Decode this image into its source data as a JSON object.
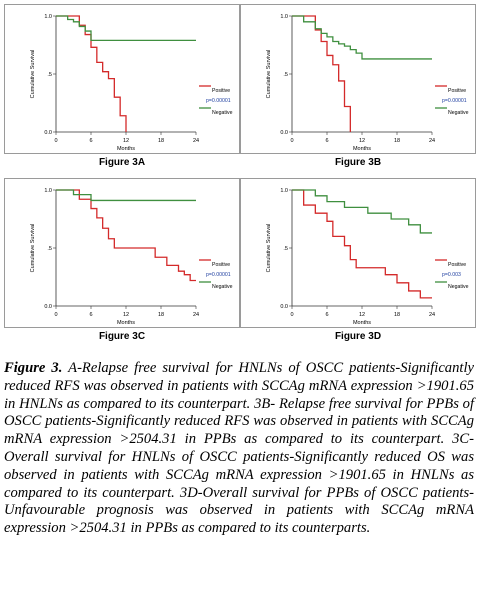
{
  "chart_data": [
    {
      "type": "line",
      "panel_label": "Figure 3A",
      "ylabel": "Cumulative Survival",
      "xlabel": "Months",
      "xlim": [
        0,
        24
      ],
      "ylim": [
        0,
        1
      ],
      "xticks": [
        "0",
        "6",
        "12",
        "18",
        "24"
      ],
      "yticks": [
        "0.0",
        ".5",
        "1.0"
      ],
      "p_label": "p=0.00001",
      "series": [
        {
          "name": "Positive",
          "color": "#d42a2a",
          "x": [
            0,
            4,
            5,
            6,
            7,
            8,
            9,
            10,
            11,
            12
          ],
          "y": [
            1.0,
            0.92,
            0.84,
            0.73,
            0.6,
            0.52,
            0.46,
            0.3,
            0.14,
            0.0
          ]
        },
        {
          "name": "Negative",
          "color": "#3f8f3f",
          "x": [
            0,
            2,
            3,
            4,
            5,
            6,
            24
          ],
          "y": [
            1.0,
            0.97,
            0.95,
            0.91,
            0.87,
            0.79,
            0.79
          ]
        }
      ]
    },
    {
      "type": "line",
      "panel_label": "Figure 3B",
      "ylabel": "Cumulative Survival",
      "xlabel": "Months",
      "xlim": [
        0,
        24
      ],
      "ylim": [
        0,
        1
      ],
      "xticks": [
        "0",
        "6",
        "12",
        "18",
        "24"
      ],
      "yticks": [
        "0.0",
        ".5",
        "1.0"
      ],
      "p_label": "p=0.00001",
      "series": [
        {
          "name": "Positive",
          "color": "#d42a2a",
          "x": [
            0,
            4,
            5,
            6,
            7,
            8,
            9,
            10
          ],
          "y": [
            1.0,
            0.88,
            0.78,
            0.66,
            0.58,
            0.44,
            0.22,
            0.0
          ]
        },
        {
          "name": "Negative",
          "color": "#3f8f3f",
          "x": [
            0,
            2,
            4,
            5,
            6,
            7,
            8,
            9,
            10,
            11,
            12,
            24
          ],
          "y": [
            1.0,
            0.95,
            0.89,
            0.85,
            0.82,
            0.78,
            0.76,
            0.74,
            0.71,
            0.68,
            0.63,
            0.63
          ]
        }
      ]
    },
    {
      "type": "line",
      "panel_label": "Figure 3C",
      "ylabel": "Cumulative Survival",
      "xlabel": "Months",
      "xlim": [
        0,
        24
      ],
      "ylim": [
        0,
        1
      ],
      "xticks": [
        "0",
        "6",
        "12",
        "18",
        "24"
      ],
      "yticks": [
        "0.0",
        ".5",
        "1.0"
      ],
      "p_label": "p=0.00001",
      "series": [
        {
          "name": "Positive",
          "color": "#d42a2a",
          "x": [
            0,
            4,
            6,
            7,
            8,
            9,
            10,
            15,
            17,
            19,
            21,
            22,
            23,
            24
          ],
          "y": [
            1.0,
            0.92,
            0.84,
            0.76,
            0.67,
            0.58,
            0.5,
            0.5,
            0.42,
            0.35,
            0.3,
            0.27,
            0.22,
            0.22
          ]
        },
        {
          "name": "Negative",
          "color": "#3f8f3f",
          "x": [
            0,
            3,
            6,
            24
          ],
          "y": [
            1.0,
            0.96,
            0.91,
            0.91
          ]
        }
      ]
    },
    {
      "type": "line",
      "panel_label": "Figure 3D",
      "ylabel": "Cumulative Survival",
      "xlabel": "Months",
      "xlim": [
        0,
        24
      ],
      "ylim": [
        0,
        1
      ],
      "xticks": [
        "0",
        "6",
        "12",
        "18",
        "24"
      ],
      "yticks": [
        "0.0",
        ".5",
        "1.0"
      ],
      "p_label": "p=0.003",
      "series": [
        {
          "name": "Positive",
          "color": "#d42a2a",
          "x": [
            0,
            2,
            4,
            6,
            7,
            9,
            10,
            11,
            16,
            18,
            20,
            22,
            24
          ],
          "y": [
            1.0,
            0.87,
            0.8,
            0.73,
            0.6,
            0.52,
            0.4,
            0.33,
            0.27,
            0.2,
            0.13,
            0.07,
            0.07
          ]
        },
        {
          "name": "Negative",
          "color": "#3f8f3f",
          "x": [
            0,
            4,
            6,
            9,
            13,
            17,
            20,
            22,
            24
          ],
          "y": [
            1.0,
            0.95,
            0.9,
            0.85,
            0.8,
            0.75,
            0.7,
            0.63,
            0.63
          ]
        }
      ]
    }
  ],
  "caption": {
    "figure_no": "Figure 3.",
    "text": "A-Relapse free survival for HNLNs of OSCC patients-Significantly reduced RFS was observed in patients with SCCAg mRNA expression >1901.65 in HNLNs as compared to its counterpart. 3B- Relapse free survival for PPBs of OSCC patients-Significantly reduced RFS was observed in patients with SCCAg mRNA expression >2504.31 in PPBs as compared to its counterpart. 3C- Overall survival for HNLNs of OSCC patients-Significantly reduced OS was observed in patients with SCCAg mRNA expression >1901.65 in HNLNs as compared to its counterpart. 3D-Overall survival for PPBs of OSCC patients-Unfavourable prognosis was observed in patients with SCCAg mRNA expression >2504.31 in PPBs as compared to its counterparts."
  }
}
